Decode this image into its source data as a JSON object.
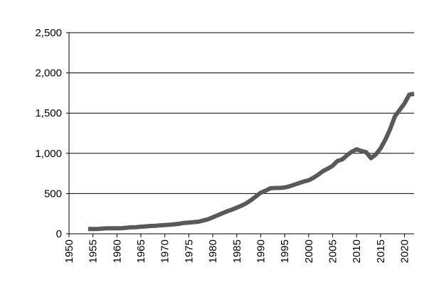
{
  "chart_data": {
    "type": "line",
    "title": "",
    "xlabel": "",
    "ylabel": "",
    "xlim": [
      1950,
      2022
    ],
    "ylim": [
      0,
      2500
    ],
    "y_ticks": [
      0,
      500,
      1000,
      1500,
      2000,
      2500
    ],
    "y_tick_labels": [
      "0",
      "500",
      "1,000",
      "1,500",
      "2,000",
      "2,500"
    ],
    "x_ticks": [
      1950,
      1955,
      1960,
      1965,
      1970,
      1975,
      1980,
      1985,
      1990,
      1995,
      2000,
      2005,
      2010,
      2015,
      2020
    ],
    "x_tick_labels": [
      "1950",
      "1955",
      "1960",
      "1965",
      "1970",
      "1975",
      "1980",
      "1985",
      "1990",
      "1995",
      "2000",
      "2005",
      "2010",
      "2015",
      "2020"
    ],
    "grid": "horizontal",
    "legend": "none",
    "line_color": "#595959",
    "series": [
      {
        "x": [
          1954,
          1955,
          1956,
          1957,
          1958,
          1959,
          1960,
          1961,
          1962,
          1963,
          1964,
          1965,
          1966,
          1967,
          1968,
          1969,
          1970,
          1971,
          1972,
          1973,
          1974,
          1975,
          1976,
          1977,
          1978,
          1979,
          1980,
          1981,
          1982,
          1983,
          1984,
          1985,
          1986,
          1987,
          1988,
          1989,
          1990,
          1991,
          1992,
          1993,
          1994,
          1995,
          1996,
          1997,
          1998,
          1999,
          2000,
          2001,
          2002,
          2003,
          2004,
          2005,
          2006,
          2007,
          2008,
          2009,
          2010,
          2011,
          2012,
          2013,
          2014,
          2015,
          2016,
          2017,
          2018,
          2019,
          2020,
          2021,
          2022
        ],
        "y": [
          60,
          60,
          60,
          65,
          68,
          68,
          68,
          70,
          75,
          80,
          82,
          88,
          92,
          97,
          100,
          105,
          108,
          112,
          118,
          125,
          135,
          140,
          145,
          150,
          165,
          180,
          205,
          230,
          255,
          280,
          300,
          325,
          350,
          380,
          420,
          465,
          510,
          535,
          565,
          570,
          570,
          575,
          590,
          610,
          630,
          650,
          665,
          695,
          735,
          780,
          810,
          845,
          905,
          925,
          975,
          1020,
          1050,
          1030,
          1015,
          940,
          985,
          1060,
          1170,
          1300,
          1460,
          1540,
          1620,
          1730,
          1740
        ]
      }
    ]
  }
}
